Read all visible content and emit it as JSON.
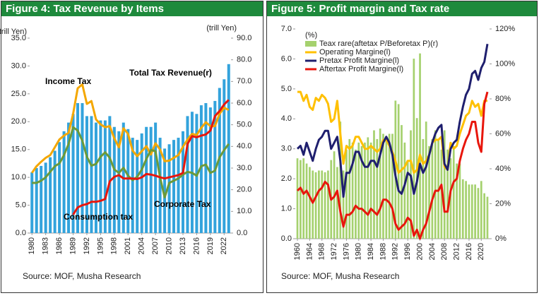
{
  "chart_data": [
    {
      "type": "combo",
      "title": "Figure 4: Tax Revenue by Items",
      "y_label": "(trill Yen)",
      "y2_label": "(trill Yen)",
      "source": "Source: MOF, Musha Research",
      "x": [
        1980,
        1981,
        1982,
        1983,
        1984,
        1985,
        1986,
        1987,
        1988,
        1989,
        1990,
        1991,
        1992,
        1993,
        1994,
        1995,
        1996,
        1997,
        1998,
        1999,
        2000,
        2001,
        2002,
        2003,
        2004,
        2005,
        2006,
        2007,
        2008,
        2009,
        2010,
        2011,
        2012,
        2013,
        2014,
        2015,
        2016,
        2017,
        2018,
        2019,
        2020,
        2021,
        2022,
        2023
      ],
      "xlim": [
        1979.5,
        2023.5
      ],
      "xticks": [
        1980,
        1983,
        1986,
        1989,
        1992,
        1995,
        1998,
        2001,
        2004,
        2007,
        2010,
        2013,
        2016,
        2019,
        2022
      ],
      "ylim": [
        0,
        35
      ],
      "yticks": [
        {
          "value": 0,
          "label": "0.0"
        },
        {
          "value": 5,
          "label": "5.0"
        },
        {
          "value": 10,
          "label": "10.0"
        },
        {
          "value": 15,
          "label": "15.0"
        },
        {
          "value": 20,
          "label": "20.0"
        },
        {
          "value": 25,
          "label": "25.0"
        },
        {
          "value": 30,
          "label": "30.0"
        },
        {
          "value": 35,
          "label": "35.0"
        }
      ],
      "y2lim": [
        0,
        90
      ],
      "y2ticks": [
        {
          "value": 0,
          "label": "0.0"
        },
        {
          "value": 10,
          "label": "10.0"
        },
        {
          "value": 20,
          "label": "20.0"
        },
        {
          "value": 30,
          "label": "30.0"
        },
        {
          "value": 40,
          "label": "40.0"
        },
        {
          "value": 50,
          "label": "50.0"
        },
        {
          "value": 60,
          "label": "60.0"
        },
        {
          "value": 70,
          "label": "70.0"
        },
        {
          "value": 80,
          "label": "80.0"
        },
        {
          "value": 90,
          "label": "90.0"
        }
      ],
      "series": [
        {
          "name": "Total Tax Revenue(r)",
          "kind": "bar",
          "axis": "y2",
          "color": "#33a3dc",
          "values": [
            28,
            30,
            31,
            32.5,
            35,
            38,
            42,
            47,
            51,
            55,
            60,
            60,
            54,
            54,
            51,
            52,
            52,
            54,
            49,
            47,
            51,
            48,
            44,
            43,
            46,
            49,
            49,
            51,
            44,
            39,
            41,
            43,
            44,
            47,
            54,
            56,
            55,
            59,
            60,
            58,
            61,
            67,
            71,
            78
          ]
        },
        {
          "name": "Income Tax",
          "kind": "line",
          "color": "#f4a700",
          "values": [
            10.8,
            12,
            12.8,
            13.5,
            14,
            15.4,
            16.8,
            17.5,
            18,
            21.4,
            26,
            26.7,
            23.2,
            23.7,
            20.4,
            19.5,
            19,
            19.2,
            17,
            15.4,
            18.8,
            17.8,
            14.8,
            13.8,
            14.7,
            15.6,
            14.1,
            16.1,
            15,
            12.9,
            13,
            13.5,
            14,
            15.5,
            16.8,
            17.8,
            17.6,
            18.9,
            19.9,
            19.2,
            19.2,
            21.4,
            22.5,
            22.1
          ]
        },
        {
          "name": "Corporate Tax",
          "kind": "line",
          "color": "#6b9a3a",
          "values": [
            9,
            9,
            9.4,
            10,
            11,
            12,
            12.5,
            14,
            16,
            19,
            18.4,
            16.6,
            13.7,
            12.1,
            12.4,
            13.7,
            14.5,
            13.5,
            11.4,
            10.8,
            11.7,
            10.3,
            9.5,
            10.1,
            11.4,
            13.3,
            14.9,
            14.7,
            10,
            6.4,
            9,
            9.4,
            9.8,
            10.5,
            11,
            10.8,
            10.3,
            12,
            12.3,
            10.8,
            11.2,
            13.6,
            14.9,
            16
          ]
        },
        {
          "name": "Consumption tax",
          "kind": "line",
          "color": "#e8160c",
          "values": [
            null,
            null,
            null,
            null,
            null,
            null,
            null,
            null,
            null,
            3.3,
            4.6,
            5,
            5.2,
            5.6,
            5.6,
            5.8,
            6.1,
            9.3,
            10.1,
            10.4,
            9.8,
            9.8,
            9.8,
            9.7,
            10,
            10.6,
            10.5,
            10.3,
            10,
            9.8,
            10,
            10.2,
            10.4,
            10.8,
            16,
            17.4,
            17.2,
            17.5,
            17.7,
            18.4,
            21,
            21.9,
            23.1,
            23.9
          ]
        }
      ]
    },
    {
      "type": "combo",
      "title": "Figure 5: Profit margin and Tax rate",
      "y_label": "(%)",
      "source": "Source: MOF, Musha Research",
      "legend": "upper-left",
      "x": [
        1960,
        1961,
        1962,
        1963,
        1964,
        1965,
        1966,
        1967,
        1968,
        1969,
        1970,
        1971,
        1972,
        1973,
        1974,
        1975,
        1976,
        1977,
        1978,
        1979,
        1980,
        1981,
        1982,
        1983,
        1984,
        1985,
        1986,
        1987,
        1988,
        1989,
        1990,
        1991,
        1992,
        1993,
        1994,
        1995,
        1996,
        1997,
        1998,
        1999,
        2000,
        2001,
        2002,
        2003,
        2004,
        2005,
        2006,
        2007,
        2008,
        2009,
        2010,
        2011,
        2012,
        2013,
        2014,
        2015,
        2016,
        2017,
        2018,
        2019,
        2020,
        2021,
        2022
      ],
      "xlim": [
        1959.3,
        2022.7
      ],
      "xticks": [
        1960,
        1964,
        1968,
        1972,
        1976,
        1980,
        1984,
        1988,
        1992,
        1996,
        2000,
        2004,
        2008,
        2012,
        2016,
        2020
      ],
      "ylim": [
        0,
        7
      ],
      "yticks": [
        {
          "value": 0,
          "label": "0.0"
        },
        {
          "value": 1,
          "label": "1.0"
        },
        {
          "value": 2,
          "label": "2.0"
        },
        {
          "value": 3,
          "label": "3.0"
        },
        {
          "value": 4,
          "label": "4.0"
        },
        {
          "value": 5,
          "label": "5.0"
        },
        {
          "value": 6,
          "label": "6.0"
        },
        {
          "value": 7,
          "label": "7.0"
        }
      ],
      "y2lim": [
        0,
        120
      ],
      "y2ticks": [
        {
          "value": 0,
          "label": "0%"
        },
        {
          "value": 20,
          "label": "20%"
        },
        {
          "value": 40,
          "label": "40%"
        },
        {
          "value": 60,
          "label": "60%"
        },
        {
          "value": 80,
          "label": "80%"
        },
        {
          "value": 100,
          "label": "100%"
        },
        {
          "value": 120,
          "label": "120%"
        }
      ],
      "series": [
        {
          "name": "Teax rare(aftetax P/Beforetax P)(r)",
          "kind": "bar",
          "axis": "y2",
          "color": "#a5d16e",
          "values": [
            46,
            45,
            46,
            43,
            41,
            39,
            38,
            39,
            39,
            38,
            39,
            45,
            50,
            41,
            67,
            39,
            51,
            57,
            55,
            51,
            55,
            53,
            55,
            58,
            55,
            62,
            57,
            63,
            60,
            57,
            60,
            60,
            79,
            77,
            65,
            55,
            45,
            62,
            103,
            69,
            106,
            57,
            67,
            53,
            57,
            62,
            57,
            51,
            62,
            51,
            46,
            53,
            43,
            43,
            34,
            33,
            31,
            31,
            31,
            29,
            33,
            26,
            24
          ]
        },
        {
          "name": "Operating Margine(l)",
          "kind": "line",
          "color": "#ffc000",
          "values": [
            4.9,
            4.9,
            4.6,
            4.8,
            4.4,
            4.3,
            4.7,
            4.6,
            4.8,
            4.7,
            4.5,
            3.9,
            4.0,
            4.6,
            3.5,
            2.5,
            3.1,
            3.0,
            3.1,
            3.4,
            3.4,
            3.2,
            3.0,
            3.0,
            3.1,
            3.0,
            2.9,
            3.0,
            3.3,
            3.3,
            3.1,
            2.9,
            2.6,
            2.2,
            2.3,
            2.4,
            2.6,
            2.6,
            2.2,
            2.3,
            2.8,
            2.5,
            2.6,
            2.8,
            3.2,
            3.3,
            3.3,
            3.4,
            2.4,
            2.3,
            3.2,
            3.0,
            3.1,
            3.5,
            3.8,
            4.1,
            4.2,
            4.6,
            4.4,
            4.5,
            4.1,
            4.6,
            4.6
          ]
        },
        {
          "name": "Pretax Profit Margine(l)",
          "kind": "line",
          "color": "#1f1f6e",
          "values": [
            3.0,
            3.1,
            2.8,
            3.2,
            2.9,
            2.6,
            3.0,
            3.3,
            3.4,
            3.6,
            3.6,
            3.0,
            3.2,
            3.4,
            2.6,
            1.4,
            2.2,
            2.2,
            2.5,
            2.9,
            2.9,
            2.6,
            2.4,
            2.4,
            2.6,
            2.6,
            2.4,
            2.8,
            3.2,
            3.4,
            3.2,
            2.8,
            2.1,
            1.6,
            1.5,
            1.8,
            2.2,
            2.1,
            1.5,
            1.9,
            2.5,
            2.2,
            2.4,
            2.8,
            3.2,
            3.5,
            3.7,
            3.8,
            2.5,
            2.3,
            3.0,
            3.2,
            3.3,
            3.9,
            4.4,
            4.8,
            5.0,
            5.5,
            5.6,
            5.3,
            5.7,
            5.9,
            6.5
          ]
        },
        {
          "name": "Aftertax Profit Margine(l)",
          "kind": "line",
          "color": "#e8160c",
          "values": [
            1.6,
            1.7,
            1.5,
            1.6,
            1.4,
            1.2,
            1.4,
            1.6,
            1.7,
            1.9,
            1.8,
            1.3,
            1.4,
            1.6,
            0.9,
            0.4,
            0.8,
            0.8,
            0.9,
            1.1,
            1.0,
            1.0,
            0.9,
            0.8,
            1.0,
            0.9,
            0.8,
            1.0,
            1.3,
            1.3,
            1.2,
            1.0,
            0.5,
            0.3,
            0.4,
            0.5,
            0.7,
            0.6,
            0.1,
            0.3,
            0.0,
            0.3,
            0.5,
            0.9,
            1.3,
            1.6,
            1.6,
            1.8,
            0.9,
            0.9,
            1.6,
            1.9,
            2.0,
            2.6,
            3.0,
            3.3,
            3.5,
            3.9,
            3.9,
            3.2,
            2.9,
            4.5,
            4.9
          ]
        }
      ]
    }
  ]
}
